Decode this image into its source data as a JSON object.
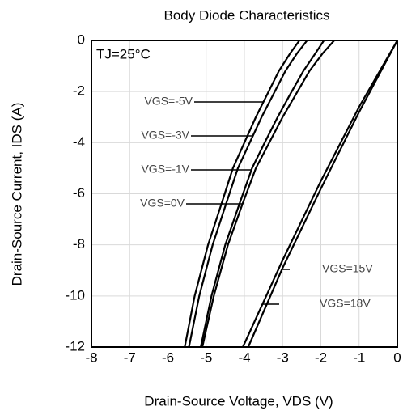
{
  "chart_data": {
    "type": "line",
    "title": "Body Diode Characteristics",
    "x_label": "Drain-Source Voltage, VDS (V)",
    "y_label": "Drain-Source Current, IDS (A)",
    "annotation": "TJ=25°C",
    "xlim": [
      -8,
      0
    ],
    "xticks": [
      -8,
      -7,
      -6,
      -5,
      -4,
      -3,
      -2,
      -1,
      0
    ],
    "ylim": [
      -12,
      0
    ],
    "yticks": [
      -12,
      -10,
      -8,
      -6,
      -4,
      -2,
      0
    ],
    "grid": true,
    "series": [
      {
        "name": "VGS=-5V",
        "color": "#000000",
        "x": [
          -5.56,
          -5.3,
          -4.95,
          -4.6,
          -4.3,
          -4.0,
          -3.7,
          -3.4,
          -3.1,
          -2.8,
          -2.56
        ],
        "values": [
          -12,
          -10,
          -8,
          -6.4,
          -5,
          -4,
          -3,
          -2.1,
          -1.2,
          -0.5,
          0
        ]
      },
      {
        "name": "VGS=-3V",
        "color": "#000000",
        "x": [
          -5.45,
          -5.18,
          -4.83,
          -4.48,
          -4.17,
          -3.86,
          -3.55,
          -3.24,
          -2.93,
          -2.62,
          -2.36
        ],
        "values": [
          -12,
          -10,
          -8,
          -6.4,
          -5,
          -4,
          -3,
          -2.1,
          -1.2,
          -0.5,
          0
        ]
      },
      {
        "name": "VGS=-1V",
        "color": "#000000",
        "x": [
          -5.14,
          -4.86,
          -4.5,
          -4.13,
          -3.8,
          -3.47,
          -3.13,
          -2.8,
          -2.46,
          -2.14,
          -1.92
        ],
        "values": [
          -12,
          -10,
          -8,
          -6.4,
          -5,
          -4,
          -3,
          -2.1,
          -1.2,
          -0.5,
          0
        ]
      },
      {
        "name": "VGS=0V",
        "color": "#000000",
        "x": [
          -5.1,
          -4.8,
          -4.43,
          -4.05,
          -3.7,
          -3.35,
          -3.0,
          -2.65,
          -2.3,
          -1.95,
          -1.65
        ],
        "values": [
          -12,
          -10,
          -8,
          -6.4,
          -5,
          -4,
          -3,
          -2.1,
          -1.2,
          -0.5,
          0
        ]
      },
      {
        "name": "VGS=15V",
        "color": "#000000",
        "x": [
          0,
          -1,
          -2,
          -3,
          -3.9
        ],
        "values": [
          0,
          -2.8,
          -5.8,
          -8.9,
          -12
        ]
      },
      {
        "name": "VGS=18V",
        "color": "#000000",
        "x": [
          0,
          -1,
          -2,
          -3,
          -4.04
        ],
        "values": [
          0,
          -2.6,
          -5.5,
          -8.6,
          -12
        ]
      }
    ]
  }
}
